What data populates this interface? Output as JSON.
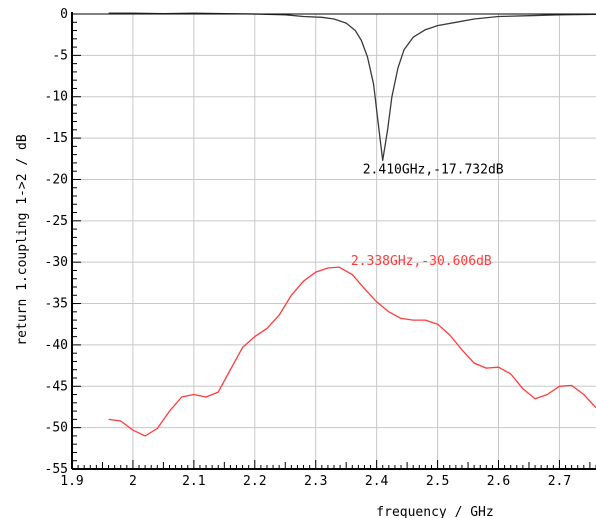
{
  "chart_data": {
    "type": "line",
    "title": "",
    "xlabel": "frequency / GHz",
    "ylabel": "return 1.coupling 1->2 / dB",
    "xlim": [
      1.9,
      2.76
    ],
    "ylim": [
      -55,
      0
    ],
    "x_ticks": [
      1.9,
      2.0,
      2.1,
      2.2,
      2.3,
      2.4,
      2.5,
      2.6,
      2.7
    ],
    "x_tick_labels": [
      "1.9",
      "2",
      "2.1",
      "2.2",
      "2.3",
      "2.4",
      "2.5",
      "2.6",
      "2.7"
    ],
    "y_ticks": [
      0,
      -5,
      -10,
      -15,
      -20,
      -25,
      -30,
      -35,
      -40,
      -45,
      -50,
      -55
    ],
    "y_tick_labels": [
      "0",
      "-5",
      "-10",
      "-15",
      "-20",
      "-25",
      "-30",
      "-35",
      "-40",
      "-45",
      "-50",
      "-55"
    ],
    "grid": true,
    "colors": {
      "return": "#3a3a3a",
      "coupling": "#ff3b3b",
      "grid": "#c8c8c8",
      "axis": "#000000"
    },
    "series": [
      {
        "key": "return",
        "color": "#3a3a3a",
        "points": [
          [
            1.96,
            0.1
          ],
          [
            2.0,
            0.1
          ],
          [
            2.05,
            0.05
          ],
          [
            2.1,
            0.1
          ],
          [
            2.15,
            0.05
          ],
          [
            2.2,
            0.0
          ],
          [
            2.25,
            -0.1
          ],
          [
            2.28,
            -0.3
          ],
          [
            2.31,
            -0.4
          ],
          [
            2.33,
            -0.6
          ],
          [
            2.35,
            -1.1
          ],
          [
            2.365,
            -2.0
          ],
          [
            2.375,
            -3.2
          ],
          [
            2.385,
            -5.2
          ],
          [
            2.395,
            -8.5
          ],
          [
            2.403,
            -13.5
          ],
          [
            2.41,
            -17.7
          ],
          [
            2.418,
            -14.0
          ],
          [
            2.425,
            -10.0
          ],
          [
            2.435,
            -6.5
          ],
          [
            2.445,
            -4.3
          ],
          [
            2.46,
            -2.8
          ],
          [
            2.48,
            -1.9
          ],
          [
            2.5,
            -1.4
          ],
          [
            2.53,
            -1.0
          ],
          [
            2.56,
            -0.6
          ],
          [
            2.6,
            -0.3
          ],
          [
            2.65,
            -0.2
          ],
          [
            2.7,
            -0.1
          ],
          [
            2.76,
            -0.05
          ]
        ]
      },
      {
        "key": "coupling",
        "color": "#ff3b3b",
        "points": [
          [
            1.96,
            -49.0
          ],
          [
            1.98,
            -49.2
          ],
          [
            2.0,
            -50.3
          ],
          [
            2.02,
            -51.0
          ],
          [
            2.04,
            -50.1
          ],
          [
            2.06,
            -48.0
          ],
          [
            2.08,
            -46.3
          ],
          [
            2.1,
            -46.0
          ],
          [
            2.12,
            -46.3
          ],
          [
            2.14,
            -45.7
          ],
          [
            2.16,
            -43.0
          ],
          [
            2.18,
            -40.3
          ],
          [
            2.2,
            -39.0
          ],
          [
            2.22,
            -38.0
          ],
          [
            2.24,
            -36.4
          ],
          [
            2.26,
            -34.0
          ],
          [
            2.28,
            -32.3
          ],
          [
            2.3,
            -31.2
          ],
          [
            2.32,
            -30.7
          ],
          [
            2.338,
            -30.6
          ],
          [
            2.36,
            -31.5
          ],
          [
            2.38,
            -33.2
          ],
          [
            2.4,
            -34.8
          ],
          [
            2.42,
            -36.0
          ],
          [
            2.44,
            -36.8
          ],
          [
            2.46,
            -37.0
          ],
          [
            2.48,
            -37.0
          ],
          [
            2.5,
            -37.5
          ],
          [
            2.52,
            -38.8
          ],
          [
            2.54,
            -40.6
          ],
          [
            2.56,
            -42.2
          ],
          [
            2.58,
            -42.8
          ],
          [
            2.6,
            -42.7
          ],
          [
            2.62,
            -43.5
          ],
          [
            2.64,
            -45.3
          ],
          [
            2.66,
            -46.5
          ],
          [
            2.68,
            -46.0
          ],
          [
            2.7,
            -45.0
          ],
          [
            2.72,
            -44.9
          ],
          [
            2.74,
            -46.0
          ],
          [
            2.76,
            -47.6
          ]
        ]
      }
    ],
    "markers": [
      {
        "x": 2.41,
        "y": -17.732,
        "label": "2.410GHz,-17.732dB",
        "color": "#000000"
      },
      {
        "x": 2.338,
        "y": -30.606,
        "label": "2.338GHz,-30.606dB",
        "color": "#ff3b3b"
      }
    ]
  }
}
